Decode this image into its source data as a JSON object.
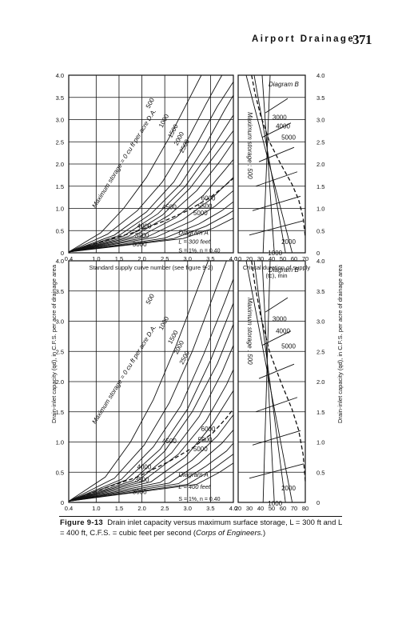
{
  "header": {
    "running_head": "Airport Drainage",
    "page_number": "371"
  },
  "caption": {
    "label": "Figure 9-13",
    "text": "Drain inlet capacity versus maximum surface storage, L = 300 ft and L = 400 ft, C.F.S. = cubic feet per second (",
    "source": "Corps of Engineers.",
    "close": ")"
  },
  "shared_ylabel_left": "Drain-inlet capacity (q_d), in C.F.S. per acre of drainage area",
  "shared_ylabel_right": "Drain-inlet capacity (q_d), in C.F.S. per acre of drainage area",
  "chart_data": [
    {
      "type": "line",
      "panel": "upper-left",
      "title": "Diagram A",
      "annotations": [
        "L = 300 feet",
        "S = 1%, n = 0.40",
        "Maximum storage = 0 cu ft per acre D.A."
      ],
      "xlabel": "Standard supply curve number (see figure 9-2)",
      "ylabel": "Drain-inlet capacity (q_d), in C.F.S. per acre of drainage area",
      "xlim": [
        0.4,
        4.0
      ],
      "ylim": [
        0,
        4.0
      ],
      "x_ticks": [
        "0.4",
        "1.0",
        "1.5",
        "2.0",
        "2.5",
        "3.0",
        "3.5",
        "4.0"
      ],
      "y_ticks": [
        "0",
        "0.5",
        "1.0",
        "1.5",
        "2.0",
        "2.5",
        "3.0",
        "3.5",
        "4.0"
      ],
      "series": [
        {
          "name": "0",
          "points": [
            [
              0.4,
              0.02
            ],
            [
              1.1,
              0.45
            ],
            [
              1.6,
              1.0
            ],
            [
              2.1,
              1.7
            ],
            [
              2.6,
              2.6
            ],
            [
              3.05,
              3.5
            ],
            [
              3.3,
              4.0
            ]
          ]
        },
        {
          "name": "500",
          "points": [
            [
              0.4,
              0.02
            ],
            [
              1.25,
              0.42
            ],
            [
              1.9,
              0.95
            ],
            [
              2.45,
              1.6
            ],
            [
              2.95,
              2.45
            ],
            [
              3.4,
              3.35
            ],
            [
              3.75,
              4.0
            ]
          ]
        },
        {
          "name": "1000",
          "points": [
            [
              0.4,
              0.02
            ],
            [
              1.4,
              0.4
            ],
            [
              2.1,
              0.92
            ],
            [
              2.7,
              1.6
            ],
            [
              3.2,
              2.45
            ],
            [
              3.65,
              3.3
            ],
            [
              4.0,
              3.85
            ]
          ]
        },
        {
          "name": "1500",
          "points": [
            [
              0.4,
              0.02
            ],
            [
              1.5,
              0.39
            ],
            [
              2.2,
              0.88
            ],
            [
              2.85,
              1.55
            ],
            [
              3.35,
              2.35
            ],
            [
              3.8,
              3.2
            ],
            [
              4.0,
              3.55
            ]
          ]
        },
        {
          "name": "2000",
          "points": [
            [
              0.4,
              0.02
            ],
            [
              1.6,
              0.38
            ],
            [
              2.35,
              0.88
            ],
            [
              2.95,
              1.5
            ],
            [
              3.5,
              2.3
            ],
            [
              4.0,
              3.1
            ]
          ]
        },
        {
          "name": "2500",
          "points": [
            [
              0.4,
              0.02
            ],
            [
              1.7,
              0.37
            ],
            [
              2.45,
              0.85
            ],
            [
              3.05,
              1.45
            ],
            [
              3.6,
              2.2
            ],
            [
              4.0,
              2.75
            ]
          ]
        },
        {
          "name": "3000",
          "points": [
            [
              0.4,
              0.02
            ],
            [
              1.8,
              0.36
            ],
            [
              2.6,
              0.85
            ],
            [
              3.2,
              1.4
            ],
            [
              3.7,
              2.05
            ],
            [
              4.0,
              2.5
            ]
          ]
        },
        {
          "name": "3500",
          "points": [
            [
              0.4,
              0.02
            ],
            [
              1.95,
              0.36
            ],
            [
              2.75,
              0.8
            ],
            [
              3.35,
              1.3
            ],
            [
              3.8,
              1.85
            ],
            [
              4.0,
              2.1
            ]
          ]
        },
        {
          "name": "4000",
          "points": [
            [
              0.4,
              0.02
            ],
            [
              2.1,
              0.35
            ],
            [
              2.9,
              0.75
            ],
            [
              3.5,
              1.2
            ],
            [
              4.0,
              1.7
            ]
          ]
        },
        {
          "name": "4500",
          "points": [
            [
              0.4,
              0.02
            ],
            [
              2.3,
              0.35
            ],
            [
              3.1,
              0.72
            ],
            [
              3.6,
              1.05
            ],
            [
              4.0,
              1.4
            ]
          ]
        },
        {
          "name": "5000",
          "points": [
            [
              0.4,
              0.02
            ],
            [
              2.5,
              0.33
            ],
            [
              3.25,
              0.65
            ],
            [
              3.75,
              0.95
            ],
            [
              4.0,
              1.15
            ]
          ]
        },
        {
          "name": "5500",
          "points": [
            [
              0.4,
              0.02
            ],
            [
              2.7,
              0.32
            ],
            [
              3.4,
              0.6
            ],
            [
              3.85,
              0.85
            ],
            [
              4.0,
              0.95
            ]
          ]
        },
        {
          "name": "6000",
          "points": [
            [
              0.4,
              0.02
            ],
            [
              2.9,
              0.32
            ],
            [
              3.55,
              0.55
            ],
            [
              4.0,
              0.78
            ]
          ]
        },
        {
          "name": "supply envelope",
          "dashed": true,
          "points": [
            [
              0.4,
              0.02
            ],
            [
              1.1,
              0.25
            ],
            [
              1.8,
              0.45
            ],
            [
              2.5,
              0.72
            ],
            [
              3.0,
              0.95
            ],
            [
              3.5,
              1.25
            ],
            [
              3.8,
              1.5
            ],
            [
              4.0,
              1.68
            ]
          ]
        }
      ],
      "curve_labels": [
        "0",
        "500",
        "1000",
        "1500",
        "2000",
        "2500",
        "3000",
        "3500",
        "4000",
        "4500",
        "5000",
        "5500",
        "6000"
      ]
    },
    {
      "type": "line",
      "panel": "upper-right",
      "title": "Diagram B",
      "annotations": [
        "Maximum storage : 500"
      ],
      "xlabel": "Critical duration of supply (t_c), min",
      "xlim": [
        10,
        70
      ],
      "ylim": [
        0,
        4.0
      ],
      "x_ticks": [
        "10",
        "20",
        "30",
        "40",
        "50",
        "60",
        "70"
      ],
      "y_ticks": [
        "0",
        "0.5",
        "1.0",
        "1.5",
        "2.0",
        "2.5",
        "3.0",
        "3.5",
        "4.0"
      ],
      "curve_labels": [
        "1000",
        "2000",
        "3000",
        "4000",
        "5000"
      ],
      "envelope_x": [
        22,
        25,
        30,
        38,
        48,
        58,
        64,
        68,
        70
      ],
      "envelope_y": [
        4.0,
        3.6,
        3.1,
        2.5,
        2.0,
        1.55,
        1.2,
        0.8,
        0.35
      ]
    },
    {
      "type": "line",
      "panel": "lower-left",
      "title": "Diagram A",
      "annotations": [
        "L = 400 feet",
        "S = 1%, n = 0.40",
        "Maximum storage = 0 cu ft per acre D.A."
      ],
      "xlabel": "Standard supply curve number (see figure 9-2)",
      "ylabel": "Drain-inlet capacity (q_d), in C.F.S. per acre of drainage area",
      "xlim": [
        0.4,
        4.0
      ],
      "ylim": [
        0,
        4.0
      ],
      "x_ticks": [
        "0.4",
        "1.0",
        "1.5",
        "2.0",
        "2.5",
        "3.0",
        "3.5",
        "4.0"
      ],
      "y_ticks": [
        "0",
        "0.5",
        "1.0",
        "1.5",
        "2.0",
        "2.5",
        "3.0",
        "3.5",
        "4.0"
      ],
      "series": [
        {
          "name": "0",
          "points": [
            [
              0.4,
              0.02
            ],
            [
              1.2,
              0.42
            ],
            [
              1.75,
              1.0
            ],
            [
              2.25,
              1.7
            ],
            [
              2.75,
              2.6
            ],
            [
              3.2,
              3.5
            ],
            [
              3.45,
              4.0
            ]
          ]
        },
        {
          "name": "500",
          "points": [
            [
              0.4,
              0.02
            ],
            [
              1.4,
              0.4
            ],
            [
              2.05,
              0.95
            ],
            [
              2.6,
              1.65
            ],
            [
              3.1,
              2.5
            ],
            [
              3.55,
              3.4
            ],
            [
              3.85,
              4.0
            ]
          ]
        },
        {
          "name": "1000",
          "points": [
            [
              0.4,
              0.02
            ],
            [
              1.55,
              0.38
            ],
            [
              2.25,
              0.92
            ],
            [
              2.85,
              1.6
            ],
            [
              3.35,
              2.45
            ],
            [
              3.8,
              3.3
            ],
            [
              4.0,
              3.7
            ]
          ]
        },
        {
          "name": "1500",
          "points": [
            [
              0.4,
              0.02
            ],
            [
              1.65,
              0.37
            ],
            [
              2.4,
              0.88
            ],
            [
              3.0,
              1.55
            ],
            [
              3.5,
              2.35
            ],
            [
              4.0,
              3.3
            ]
          ]
        },
        {
          "name": "2000",
          "points": [
            [
              0.4,
              0.02
            ],
            [
              1.8,
              0.36
            ],
            [
              2.5,
              0.85
            ],
            [
              3.1,
              1.5
            ],
            [
              3.65,
              2.3
            ],
            [
              4.0,
              2.95
            ]
          ]
        },
        {
          "name": "2500",
          "points": [
            [
              0.4,
              0.02
            ],
            [
              1.9,
              0.35
            ],
            [
              2.65,
              0.82
            ],
            [
              3.25,
              1.42
            ],
            [
              3.75,
              2.15
            ],
            [
              4.0,
              2.6
            ]
          ]
        },
        {
          "name": "3000",
          "points": [
            [
              0.4,
              0.02
            ],
            [
              2.0,
              0.34
            ],
            [
              2.8,
              0.8
            ],
            [
              3.4,
              1.35
            ],
            [
              3.85,
              1.95
            ],
            [
              4.0,
              2.2
            ]
          ]
        },
        {
          "name": "3500",
          "points": [
            [
              0.4,
              0.02
            ],
            [
              2.2,
              0.34
            ],
            [
              2.95,
              0.75
            ],
            [
              3.5,
              1.25
            ],
            [
              4.0,
              1.85
            ]
          ]
        },
        {
          "name": "4000",
          "points": [
            [
              0.4,
              0.02
            ],
            [
              2.4,
              0.33
            ],
            [
              3.1,
              0.7
            ],
            [
              3.65,
              1.1
            ],
            [
              4.0,
              1.45
            ]
          ]
        },
        {
          "name": "4500",
          "points": [
            [
              0.4,
              0.02
            ],
            [
              2.6,
              0.32
            ],
            [
              3.25,
              0.65
            ],
            [
              3.75,
              0.98
            ],
            [
              4.0,
              1.2
            ]
          ]
        },
        {
          "name": "5000",
          "points": [
            [
              0.4,
              0.02
            ],
            [
              2.8,
              0.31
            ],
            [
              3.4,
              0.6
            ],
            [
              3.85,
              0.85
            ],
            [
              4.0,
              0.98
            ]
          ]
        },
        {
          "name": "5500",
          "points": [
            [
              0.4,
              0.02
            ],
            [
              3.0,
              0.3
            ],
            [
              3.55,
              0.55
            ],
            [
              4.0,
              0.8
            ]
          ]
        },
        {
          "name": "6000",
          "points": [
            [
              0.4,
              0.02
            ],
            [
              3.2,
              0.3
            ],
            [
              3.7,
              0.5
            ],
            [
              4.0,
              0.65
            ]
          ]
        },
        {
          "name": "supply envelope",
          "dashed": true,
          "points": [
            [
              0.4,
              0.02
            ],
            [
              1.2,
              0.24
            ],
            [
              1.9,
              0.42
            ],
            [
              2.6,
              0.68
            ],
            [
              3.1,
              0.9
            ],
            [
              3.55,
              1.15
            ],
            [
              3.85,
              1.4
            ],
            [
              4.0,
              1.55
            ]
          ]
        }
      ],
      "curve_labels": [
        "0",
        "500",
        "1000",
        "1500",
        "2000",
        "2500",
        "3000",
        "3500",
        "4000",
        "4500",
        "5000",
        "5500",
        "6000"
      ]
    },
    {
      "type": "line",
      "panel": "lower-right",
      "title": "Diagram B",
      "annotations": [
        "Maximum storage : 500"
      ],
      "xlabel": "Critical duration of supply (t_c), min",
      "xlim": [
        20,
        80
      ],
      "ylim": [
        0,
        4.0
      ],
      "x_ticks": [
        "20",
        "30",
        "40",
        "50",
        "60",
        "70",
        "80"
      ],
      "y_ticks": [
        "0",
        "0.5",
        "1.0",
        "1.5",
        "2.0",
        "2.5",
        "3.0",
        "3.5",
        "4.0"
      ],
      "curve_labels": [
        "1000",
        "2000",
        "3000",
        "4000",
        "5000"
      ],
      "envelope_x": [
        32,
        35,
        40,
        48,
        58,
        68,
        74,
        78,
        80
      ],
      "envelope_y": [
        4.0,
        3.6,
        3.1,
        2.5,
        2.0,
        1.55,
        1.2,
        0.8,
        0.35
      ]
    }
  ]
}
